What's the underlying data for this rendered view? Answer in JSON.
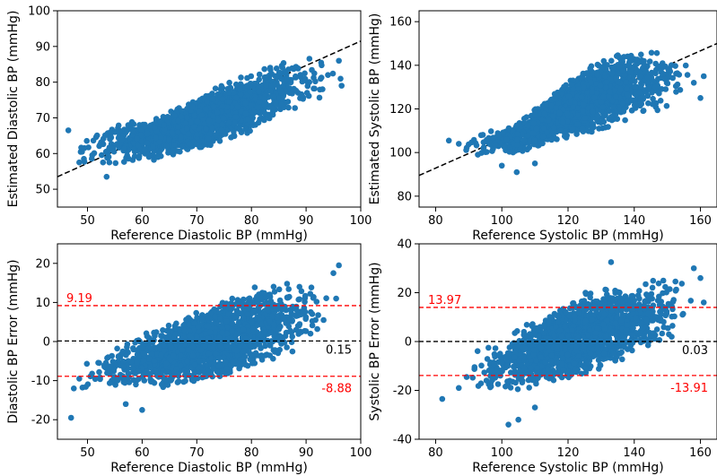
{
  "colors": {
    "points": "#1f77b4",
    "identity_line": "#000000",
    "limit_line": "#ff0000",
    "mean_line": "#000000",
    "axes": "#000000"
  },
  "chart_data": [
    {
      "id": "dia_corr",
      "type": "scatter",
      "xlabel": "Reference Diastolic BP (mmHg)",
      "ylabel": "Estimated Diastolic BP (mmHg)",
      "xlim": [
        44.5,
        100
      ],
      "ylim": [
        45,
        100
      ],
      "xticks": [
        50,
        60,
        70,
        80,
        90,
        100
      ],
      "yticks": [
        50,
        60,
        70,
        80,
        90,
        100
      ],
      "ref_line": {
        "x": [
          44.5,
          100
        ],
        "y": [
          53.5,
          91.5
        ]
      },
      "cloud": [
        {
          "x": [
            46,
            62.5
          ],
          "y_low": [
            55,
            58
          ],
          "y_high": [
            67,
            70
          ]
        },
        {
          "x": [
            62.5,
            77.5
          ],
          "y_low": [
            58,
            64
          ],
          "y_high": [
            70,
            82
          ]
        },
        {
          "x": [
            77.5,
            87.5
          ],
          "y_low": [
            64,
            72
          ],
          "y_high": [
            82,
            87
          ]
        },
        {
          "x": [
            87.5,
            97
          ],
          "y_low": [
            72,
            78
          ],
          "y_high": [
            87,
            87
          ]
        }
      ],
      "points": [
        {
          "x": 46.5,
          "y": 66.5
        },
        {
          "x": 48.5,
          "y": 57.5
        },
        {
          "x": 49,
          "y": 60.5
        },
        {
          "x": 53.5,
          "y": 53.5
        },
        {
          "x": 54,
          "y": 57.5
        },
        {
          "x": 96,
          "y": 86
        },
        {
          "x": 96.5,
          "y": 79
        },
        {
          "x": 94,
          "y": 82
        },
        {
          "x": 93,
          "y": 78
        }
      ]
    },
    {
      "id": "sys_corr",
      "type": "scatter",
      "xlabel": "Reference Systolic BP (mmHg)",
      "ylabel": "Estimated Systolic BP (mmHg)",
      "xlim": [
        75,
        165
      ],
      "ylim": [
        75,
        165
      ],
      "xticks": [
        80,
        100,
        120,
        140,
        160
      ],
      "yticks": [
        80,
        100,
        120,
        140,
        160
      ],
      "ref_line": {
        "x": [
          75,
          165
        ],
        "y": [
          89.5,
          150
        ]
      },
      "cloud": [
        {
          "x": [
            86,
            103
          ],
          "y_low": [
            97,
            99
          ],
          "y_high": [
            110,
            112
          ]
        },
        {
          "x": [
            103,
            130
          ],
          "y_low": [
            99,
            110
          ],
          "y_high": [
            112,
            145
          ]
        },
        {
          "x": [
            130,
            150
          ],
          "y_low": [
            110,
            120
          ],
          "y_high": [
            145,
            148
          ]
        },
        {
          "x": [
            150,
            160
          ],
          "y_low": [
            120,
            128
          ],
          "y_high": [
            148,
            148
          ]
        }
      ],
      "points": [
        {
          "x": 84,
          "y": 105.5
        },
        {
          "x": 87,
          "y": 104
        },
        {
          "x": 100,
          "y": 94
        },
        {
          "x": 104.5,
          "y": 91
        },
        {
          "x": 110,
          "y": 95
        },
        {
          "x": 158,
          "y": 132
        },
        {
          "x": 161,
          "y": 135
        },
        {
          "x": 160,
          "y": 125
        }
      ]
    },
    {
      "id": "dia_ba",
      "type": "scatter",
      "xlabel": "Reference Diastolic BP (mmHg)",
      "ylabel": "Diastolic BP Error (mmHg)",
      "xlim": [
        44.5,
        100
      ],
      "ylim": [
        -25,
        25
      ],
      "xticks": [
        50,
        60,
        70,
        80,
        90,
        100
      ],
      "yticks": [
        -20,
        -10,
        0,
        10,
        20
      ],
      "mean_line": 0.15,
      "upper_limit": 9.19,
      "lower_limit": -8.88,
      "mean_label": "0.15",
      "upper_label": "9.19",
      "lower_label": "-8.88",
      "cloud": [
        {
          "x": [
            47,
            60
          ],
          "y_low": [
            -14,
            -13
          ],
          "y_high": [
            -6,
            2
          ]
        },
        {
          "x": [
            60,
            80
          ],
          "y_low": [
            -13,
            -8
          ],
          "y_high": [
            2,
            14
          ]
        },
        {
          "x": [
            80,
            90
          ],
          "y_low": [
            -8,
            -2
          ],
          "y_high": [
            14,
            17
          ]
        },
        {
          "x": [
            90,
            97
          ],
          "y_low": [
            -2,
            1
          ],
          "y_high": [
            17,
            19
          ]
        }
      ],
      "points": [
        {
          "x": 47,
          "y": -19.5
        },
        {
          "x": 47.5,
          "y": -12
        },
        {
          "x": 48.5,
          "y": -9.5
        },
        {
          "x": 57,
          "y": -16
        },
        {
          "x": 60,
          "y": -17.5
        },
        {
          "x": 95,
          "y": 17.5
        },
        {
          "x": 96,
          "y": 19.5
        },
        {
          "x": 95.5,
          "y": 11
        }
      ]
    },
    {
      "id": "sys_ba",
      "type": "scatter",
      "xlabel": "Reference Systolic BP (mmHg)",
      "ylabel": "Systolic BP Error (mmHg)",
      "xlim": [
        75,
        165
      ],
      "ylim": [
        -40,
        40
      ],
      "xticks": [
        80,
        100,
        120,
        140,
        160
      ],
      "yticks": [
        -40,
        -20,
        0,
        20,
        40
      ],
      "mean_line": 0.03,
      "upper_limit": 13.97,
      "lower_limit": -13.91,
      "mean_label": "0.03",
      "upper_label": "13.97",
      "lower_label": "-13.91",
      "cloud": [
        {
          "x": [
            86,
            100
          ],
          "y_low": [
            -22,
            -22
          ],
          "y_high": [
            -8,
            2
          ]
        },
        {
          "x": [
            100,
            125
          ],
          "y_low": [
            -22,
            -14
          ],
          "y_high": [
            2,
            20
          ]
        },
        {
          "x": [
            125,
            145
          ],
          "y_low": [
            -14,
            -4
          ],
          "y_high": [
            20,
            26
          ]
        },
        {
          "x": [
            145,
            160
          ],
          "y_low": [
            -4,
            4
          ],
          "y_high": [
            26,
            28
          ]
        }
      ],
      "points": [
        {
          "x": 82,
          "y": -23.5
        },
        {
          "x": 87,
          "y": -19
        },
        {
          "x": 102,
          "y": -34
        },
        {
          "x": 105,
          "y": -32
        },
        {
          "x": 110,
          "y": -27
        },
        {
          "x": 133,
          "y": 32.5
        },
        {
          "x": 158,
          "y": 30
        },
        {
          "x": 160,
          "y": 26
        },
        {
          "x": 161,
          "y": 16
        }
      ]
    }
  ]
}
